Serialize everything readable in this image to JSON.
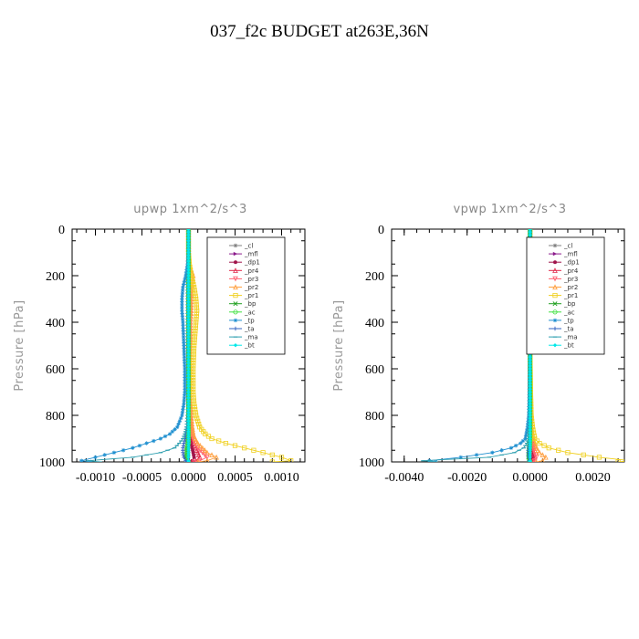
{
  "title": "037_f2c  BUDGET at263E,36N",
  "colors": {
    "_cl": "#808080",
    "_mfl": "#8b1a8b",
    "_dp1": "#a0144a",
    "_pr4": "#e0284a",
    "_pr3": "#ff6070",
    "_pr2": "#ffa040",
    "_pr1": "#f0d020",
    "_bp": "#20a020",
    "_ac": "#40e040",
    "_tp": "#2090d0",
    "_ta": "#3060c0",
    "_ma": "#30a0b0",
    "_bt": "#00e8e8"
  },
  "markers": {
    "_cl": "star",
    "_mfl": "rtri",
    "_dp1": "dot",
    "_pr4": "tri",
    "_pr3": "dtri",
    "_pr2": "tri",
    "_pr1": "sq",
    "_bp": "x",
    "_ac": "circ",
    "_tp": "star",
    "_ta": "plus",
    "_ma": "dash",
    "_bt": "diam"
  },
  "chart_data": [
    {
      "type": "line",
      "title": "upwp   1xm^2/s^3",
      "ylabel": "Pressure [hPa]",
      "xlim": [
        -0.00125,
        0.00125
      ],
      "ylim": [
        1000,
        0
      ],
      "xticks": [
        -0.001,
        -0.0005,
        0.0,
        0.0005,
        0.001
      ],
      "xtick_labels": [
        "-0.0010",
        "-0.0005",
        "0.0000",
        "0.0005",
        "0.0010"
      ],
      "yticks": [
        0,
        200,
        400,
        600,
        800,
        1000
      ],
      "ytick_labels": [
        "0",
        "200",
        "400",
        "600",
        "800",
        "1000"
      ],
      "legend": [
        "_cl",
        "_mfl",
        "_dp1",
        "_pr4",
        "_pr3",
        "_pr2",
        "_pr1",
        "_bp",
        "_ac",
        "_tp",
        "_ta",
        "_ma",
        "_bt"
      ],
      "legend_position": "top-right",
      "p": [
        0,
        100,
        150,
        200,
        250,
        300,
        350,
        400,
        500,
        600,
        700,
        750,
        800,
        850,
        880,
        900,
        920,
        940,
        960,
        980,
        995,
        1000
      ],
      "series": [
        {
          "name": "_cl",
          "values": [
            0,
            0,
            0,
            0,
            0,
            0,
            0,
            0,
            0,
            0,
            0,
            0,
            0,
            0,
            0,
            0,
            0,
            0,
            0,
            0,
            0,
            0
          ]
        },
        {
          "name": "_mfl",
          "values": [
            0,
            0,
            0,
            0,
            0,
            0,
            0,
            0,
            0,
            0,
            0,
            0,
            0,
            0,
            0,
            0,
            0,
            0,
            0,
            0,
            0,
            0
          ]
        },
        {
          "name": "_dp1",
          "values": [
            0,
            0,
            0,
            0,
            0,
            0,
            0,
            0,
            0,
            0,
            0,
            0,
            0,
            1e-05,
            1e-05,
            2e-05,
            3e-05,
            4e-05,
            5e-05,
            6e-05,
            4e-05,
            2e-05
          ]
        },
        {
          "name": "_pr4",
          "values": [
            0,
            0,
            0,
            0,
            0,
            0,
            0,
            0,
            0,
            0,
            0,
            0,
            1e-05,
            2e-05,
            3e-05,
            4e-05,
            6e-05,
            8e-05,
            0.0001,
            0.00012,
            8e-05,
            4e-05
          ]
        },
        {
          "name": "_pr3",
          "values": [
            0,
            0,
            0,
            1e-05,
            1e-05,
            2e-05,
            2e-05,
            2e-05,
            1e-05,
            1e-05,
            1e-05,
            1e-05,
            2e-05,
            3e-05,
            4e-05,
            5e-05,
            7e-05,
            0.0001,
            0.00015,
            0.0002,
            0.00012,
            6e-05
          ]
        },
        {
          "name": "_pr2",
          "values": [
            0,
            0,
            1e-05,
            5e-05,
            4e-05,
            3e-05,
            3e-05,
            2e-05,
            2e-05,
            2e-05,
            2e-05,
            2e-05,
            3e-05,
            4e-05,
            5e-05,
            7e-05,
            0.0001,
            0.00015,
            0.0002,
            0.0003,
            0.0002,
            0.0001
          ]
        },
        {
          "name": "_pr1",
          "values": [
            0,
            0,
            1e-05,
            3e-05,
            6e-05,
            8e-05,
            9e-05,
            8e-05,
            6e-05,
            5e-05,
            5e-05,
            6e-05,
            8e-05,
            0.00012,
            0.00018,
            0.00025,
            0.0004,
            0.0006,
            0.0008,
            0.001,
            0.0011,
            0.0009
          ]
        },
        {
          "name": "_bp",
          "values": [
            0,
            0,
            0,
            0,
            0,
            0,
            0,
            0,
            0,
            0,
            0,
            0,
            0,
            0,
            0,
            -1e-05,
            -1e-05,
            -2e-05,
            -2e-05,
            -3e-05,
            -2e-05,
            -1e-05
          ]
        },
        {
          "name": "_ac",
          "values": [
            0,
            0,
            0,
            0,
            0,
            0,
            0,
            0,
            0,
            0,
            0,
            0,
            0,
            0,
            0,
            0,
            0,
            -1e-05,
            -1e-05,
            -2e-05,
            -1e-05,
            0
          ]
        },
        {
          "name": "_tp",
          "values": [
            0,
            0,
            -1e-05,
            -3e-05,
            -6e-05,
            -7e-05,
            -7e-05,
            -6e-05,
            -5e-05,
            -4e-05,
            -4e-05,
            -5e-05,
            -7e-05,
            -0.00012,
            -0.0002,
            -0.0003,
            -0.00045,
            -0.0006,
            -0.0008,
            -0.001,
            -0.00115,
            -0.00105
          ]
        },
        {
          "name": "_ta",
          "values": [
            0,
            0,
            0,
            0,
            0,
            0,
            0,
            0,
            0,
            0,
            0,
            0,
            -1e-05,
            -2e-05,
            -3e-05,
            -4e-05,
            -5e-05,
            -6e-05,
            -6e-05,
            -5e-05,
            -3e-05,
            -2e-05
          ]
        },
        {
          "name": "_ma",
          "values": [
            0,
            0,
            0,
            -1e-05,
            -1e-05,
            -1e-05,
            -1e-05,
            -1e-05,
            -1e-05,
            0,
            0,
            0,
            -1e-05,
            -2e-05,
            -4e-05,
            -6e-05,
            -0.0001,
            -0.00015,
            -0.0003,
            -0.0006,
            -0.00108,
            -0.00095
          ]
        },
        {
          "name": "_bt",
          "values": [
            0,
            0,
            0,
            0,
            0,
            0,
            0,
            0,
            0,
            0,
            0,
            0,
            0,
            0,
            0,
            0,
            0,
            0,
            0,
            0,
            0,
            0
          ]
        }
      ]
    },
    {
      "type": "line",
      "title": "vpwp   1xm^2/s^3",
      "ylabel": "Pressure [hPa]",
      "xlim": [
        -0.0044,
        0.003
      ],
      "ylim": [
        1000,
        0
      ],
      "xticks": [
        -0.004,
        -0.002,
        0.0,
        0.002
      ],
      "xtick_labels": [
        "-0.0040",
        "-0.0020",
        "0.0000",
        "0.0020"
      ],
      "yticks": [
        0,
        200,
        400,
        600,
        800,
        1000
      ],
      "ytick_labels": [
        "0",
        "200",
        "400",
        "600",
        "800",
        "1000"
      ],
      "legend": [
        "_cl",
        "_mfl",
        "_dp1",
        "_pr4",
        "_pr3",
        "_pr2",
        "_pr1",
        "_bp",
        "_ac",
        "_tp",
        "_ta",
        "_ma",
        "_bt"
      ],
      "legend_position": "top-right",
      "p": [
        0,
        100,
        200,
        300,
        400,
        500,
        600,
        700,
        800,
        850,
        900,
        920,
        940,
        960,
        980,
        995,
        1000
      ],
      "series": [
        {
          "name": "_cl",
          "values": [
            0,
            0,
            0,
            0,
            0,
            0,
            0,
            0,
            0,
            0,
            0,
            0,
            0,
            0,
            0,
            0,
            0
          ]
        },
        {
          "name": "_mfl",
          "values": [
            0,
            0,
            0,
            0,
            0,
            0,
            0,
            0,
            0,
            0,
            0,
            0,
            0,
            0,
            0,
            0,
            0
          ]
        },
        {
          "name": "_dp1",
          "values": [
            0,
            0,
            0,
            0,
            0,
            0,
            0,
            0,
            0,
            0,
            0,
            2e-05,
            3e-05,
            5e-05,
            8e-05,
            5e-05,
            2e-05
          ]
        },
        {
          "name": "_pr4",
          "values": [
            0,
            0,
            0,
            0,
            0,
            0,
            0,
            0,
            0,
            2e-05,
            4e-05,
            6e-05,
            8e-05,
            0.0001,
            0.00015,
            0.0001,
            5e-05
          ]
        },
        {
          "name": "_pr3",
          "values": [
            0,
            0,
            0,
            0,
            0,
            0,
            0,
            0,
            2e-05,
            3e-05,
            5e-05,
            8e-05,
            0.0001,
            0.00015,
            0.0002,
            0.00015,
            8e-05
          ]
        },
        {
          "name": "_pr2",
          "values": [
            0,
            0,
            0,
            0,
            0,
            0,
            0,
            2e-05,
            4e-05,
            6e-05,
            0.0001,
            0.00015,
            0.0002,
            0.0003,
            0.0005,
            0.0004,
            0.0002
          ]
        },
        {
          "name": "_pr1",
          "values": [
            0,
            0,
            0,
            0,
            0,
            0,
            1e-05,
            2e-05,
            4e-05,
            8e-05,
            0.00015,
            0.0003,
            0.0006,
            0.0012,
            0.0022,
            0.0032,
            0.0028
          ]
        },
        {
          "name": "_bp",
          "values": [
            0,
            0,
            0,
            0,
            0,
            0,
            0,
            0,
            0,
            0,
            0,
            -2e-05,
            -3e-05,
            -4e-05,
            -5e-05,
            -3e-05,
            -1e-05
          ]
        },
        {
          "name": "_ac",
          "values": [
            0,
            0,
            0,
            0,
            0,
            0,
            0,
            0,
            0,
            0,
            0,
            0,
            -1e-05,
            -2e-05,
            -3e-05,
            -2e-05,
            0
          ]
        },
        {
          "name": "_tp",
          "values": [
            0,
            0,
            0,
            0,
            0,
            0,
            -1e-05,
            -2e-05,
            -4e-05,
            -8e-05,
            -0.00015,
            -0.0003,
            -0.0006,
            -0.0012,
            -0.0022,
            -0.0032,
            -0.003
          ]
        },
        {
          "name": "_ta",
          "values": [
            0,
            0,
            0,
            0,
            0,
            0,
            0,
            0,
            0,
            0,
            -2e-05,
            -4e-05,
            -5e-05,
            -6e-05,
            -5e-05,
            -3e-05,
            -2e-05
          ]
        },
        {
          "name": "_ma",
          "values": [
            0,
            0,
            0,
            0,
            0,
            0,
            0,
            0,
            -2e-05,
            -3e-05,
            -6e-05,
            -0.0001,
            -0.0002,
            -0.0005,
            -0.0013,
            -0.0034,
            -0.003
          ]
        },
        {
          "name": "_bt",
          "values": [
            0,
            0,
            0,
            0,
            0,
            0,
            0,
            0,
            0,
            0,
            0,
            0,
            0,
            0,
            0,
            0,
            0
          ]
        }
      ]
    }
  ]
}
